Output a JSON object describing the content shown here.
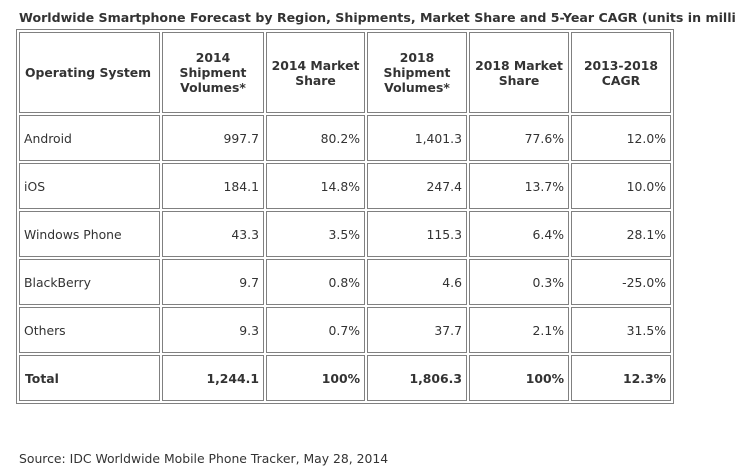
{
  "title": "Worldwide Smartphone Forecast by Region, Shipments, Market Share and 5-Year CAGR (units in millions)",
  "source": "Source: IDC Worldwide Mobile Phone Tracker, May 28, 2014",
  "chart_data": {
    "type": "table",
    "title": "Worldwide Smartphone Forecast by Region, Shipments, Market Share and 5-Year CAGR (units in millions)",
    "columns": [
      "Operating System",
      "2014 Shipment Volumes*",
      "2014 Market Share",
      "2018 Shipment Volumes*",
      "2018 Market Share",
      "2013-2018 CAGR"
    ],
    "rows": [
      [
        "Android",
        "997.7",
        "80.2%",
        "1,401.3",
        "77.6%",
        "12.0%"
      ],
      [
        "iOS",
        "184.1",
        "14.8%",
        "247.4",
        "13.7%",
        "10.0%"
      ],
      [
        "Windows Phone",
        "43.3",
        "3.5%",
        "115.3",
        "6.4%",
        "28.1%"
      ],
      [
        "BlackBerry",
        "9.7",
        "0.8%",
        "4.6",
        "0.3%",
        "-25.0%"
      ],
      [
        "Others",
        "9.3",
        "0.7%",
        "37.7",
        "2.1%",
        "31.5%"
      ]
    ],
    "total": [
      "Total",
      "1,244.1",
      "100%",
      "1,806.3",
      "100%",
      "12.3%"
    ]
  }
}
